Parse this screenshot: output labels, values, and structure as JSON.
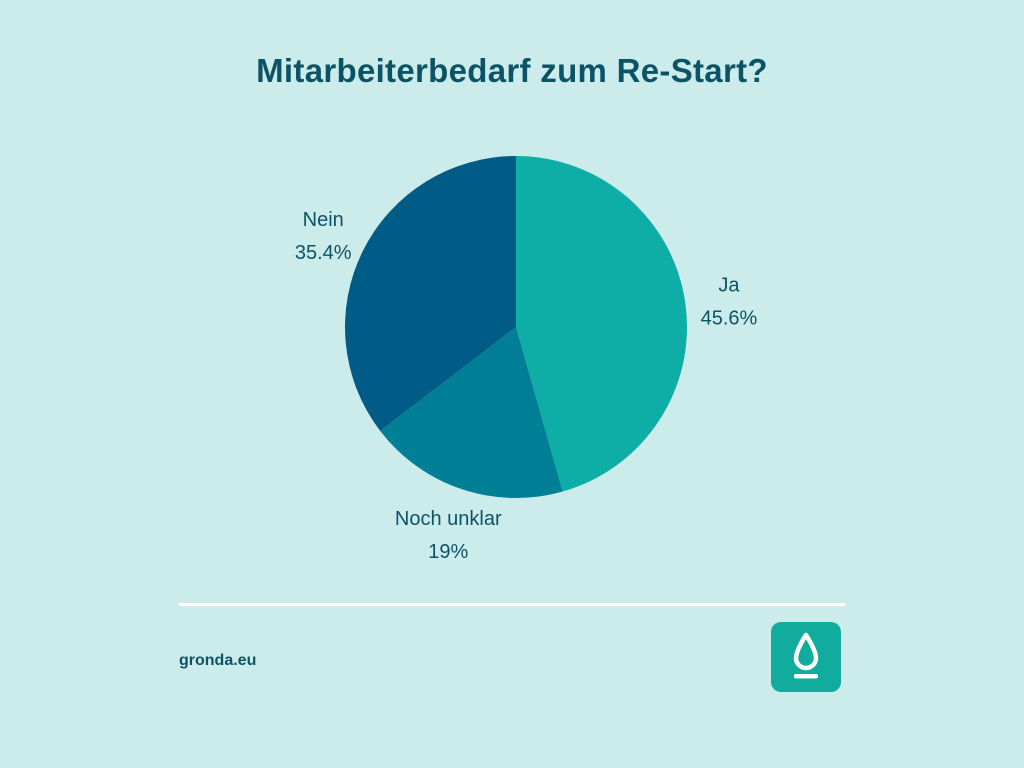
{
  "title": "Mitarbeiterbedarf zum Re-Start?",
  "chart_data": {
    "type": "pie",
    "title": "Mitarbeiterbedarf zum Re-Start?",
    "slices": [
      {
        "label": "Ja",
        "value": 45.6,
        "value_label": "45.6%",
        "color": "#0eaea6"
      },
      {
        "label": "Noch unklar",
        "value": 19,
        "value_label": "19%",
        "color": "#017f96"
      },
      {
        "label": "Nein",
        "value": 35.4,
        "value_label": "35.4%",
        "color": "#005b86"
      }
    ]
  },
  "colors": {
    "background": "#ccecec",
    "title": "#0c5366",
    "label": "#0c5366",
    "divider": "#ffffff",
    "logo_bg": "#12ac9f"
  },
  "footer": {
    "site": "gronda.eu",
    "logo_icon": "droplet-icon"
  }
}
